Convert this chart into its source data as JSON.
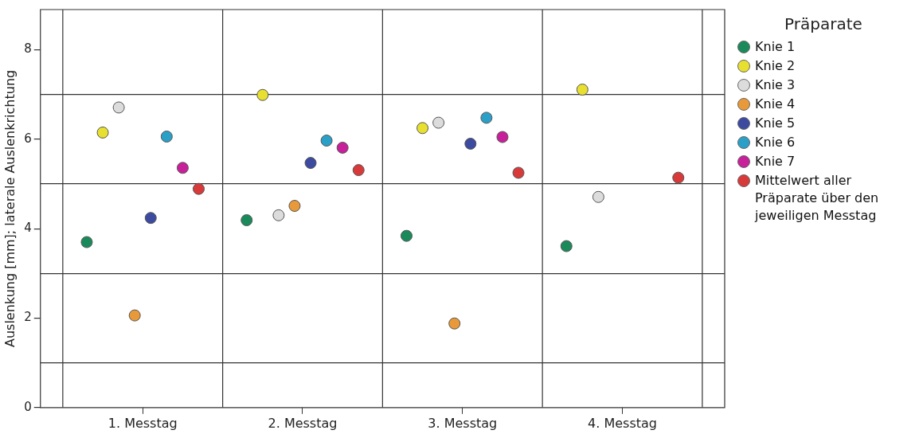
{
  "chart_data": {
    "type": "scatter",
    "ylabel": "Auslenkung [mm]; laterale Auslenkrichtung",
    "legend_title": "Präparate",
    "categories": [
      "1. Messtag",
      "2. Messtag",
      "3. Messtag",
      "4. Messtag"
    ],
    "ylim": [
      0,
      8.9
    ],
    "yticks": [
      0,
      {
        "value": 1,
        "label": null
      },
      2,
      {
        "value": 3,
        "label": null
      },
      4,
      {
        "value": 5,
        "label": null
      },
      6,
      {
        "value": 7,
        "label": null
      },
      8
    ],
    "grid": true,
    "legend": "right",
    "marker": "circle",
    "series": [
      {
        "name": "Knie 1",
        "color": "#1a8a5a",
        "values": [
          3.7,
          4.19,
          3.84,
          3.61
        ]
      },
      {
        "name": "Knie 2",
        "color": "#e8e030",
        "values": [
          6.15,
          6.99,
          6.25,
          7.11
        ]
      },
      {
        "name": "Knie 3",
        "color": "#dcdcdc",
        "values": [
          6.71,
          4.3,
          6.37,
          4.71
        ]
      },
      {
        "name": "Knie 4",
        "color": "#e89a3a",
        "values": [
          2.06,
          4.51,
          1.88,
          null
        ]
      },
      {
        "name": "Knie 5",
        "color": "#3c4aa0",
        "values": [
          4.24,
          5.47,
          5.9,
          null
        ]
      },
      {
        "name": "Knie 6",
        "color": "#2aa0c8",
        "values": [
          6.06,
          5.97,
          6.48,
          null
        ]
      },
      {
        "name": "Knie 7",
        "color": "#c8209a",
        "values": [
          5.36,
          5.81,
          6.05,
          null
        ]
      },
      {
        "name": "Mittelwert aller Präparate über den jeweiligen Messtag",
        "color": "#d83a3a",
        "values": [
          4.89,
          5.31,
          5.25,
          5.14
        ]
      }
    ]
  }
}
